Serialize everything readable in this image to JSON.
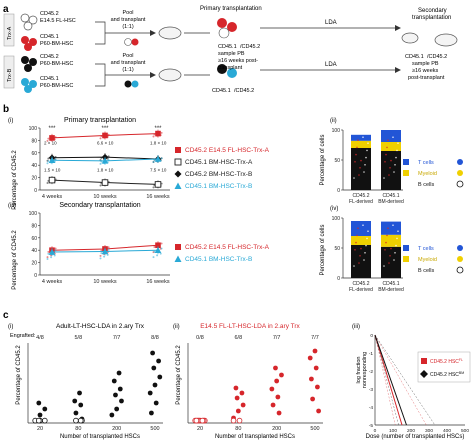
{
  "panel_labels": {
    "a": "a",
    "b": "b",
    "c": "c"
  },
  "panel_a": {
    "row_a": {
      "trx_label": "Trx-A",
      "donor1_l1": "CD45.2",
      "donor1_l2": "E14.5 FL-HSC",
      "donor2_l1": "CD45.1",
      "donor2_l2": "P60-BM-HSC",
      "pool_l1": "Pool",
      "pool_l2": "and transplant",
      "pool_l3": "(1:1)"
    },
    "row_b": {
      "trx_label": "Trx-B",
      "donor1_l1": "CD45.2",
      "donor1_l2": "P60-BM-HSC",
      "donor2_l1": "CD45.1",
      "donor2_l2": "P60-BM-HSC",
      "pool_l1": "Pool",
      "pool_l2": "and transplant",
      "pool_l3": "(1:1)"
    },
    "primary_title": "Primary transplantation",
    "sample_l1": "CD45.1",
    "sample_l2": "/CD45.2",
    "sample_l3": "sample PB",
    "sample_l4": "≥16 weeks post-",
    "sample_l5": "transplant",
    "lda1": "LDA",
    "lda2": "LDA",
    "mid_cells": "CD45.1",
    "mid_cells2": "/CD45.2",
    "secondary_title_l1": "Secondary",
    "secondary_title_l2": "transplantation",
    "sec_sample_l1": "CD45.1",
    "sec_sample_l2": "/CD45.2",
    "sec_sample_l3": "sample PB",
    "sec_sample_l4": "≥16 weeks",
    "sec_sample_l5": "post-transplant"
  },
  "panel_b": {
    "sub_i": "(i)",
    "sub_ii": "(ii)",
    "sub_iii": "(iii)",
    "sub_iv": "(iv)",
    "primary_title": "Primary transplantation",
    "secondary_title": "Secondary transplantation",
    "ylabel_line": "Percentage of CD45.2",
    "ylabel_bar": "Percentage of cells",
    "sig": [
      "***",
      "***",
      "***"
    ],
    "pvals": [
      "2 × 10",
      "6.6 × 10",
      "1.8 × 10"
    ],
    "pvals_bottom": [
      "1.5 × 10",
      "1.8 × 10",
      "7.5 × 10"
    ],
    "legend_i": [
      {
        "label": "CD45.2 E14.5 FL-HSC-Trx-A",
        "color": "#d6262b",
        "marker": "square"
      },
      {
        "label": "CD45.1 BM-HSC-Trx-A",
        "color": "#222222",
        "marker": "square-open"
      },
      {
        "label": "CD45.2 BM-HSC-Trx-B",
        "color": "#111111",
        "marker": "diamond"
      },
      {
        "label": "CD45.1 BM-HSC-Trx-B",
        "color": "#29a9d6",
        "marker": "triangle"
      }
    ],
    "legend_iii": [
      {
        "label": "CD45.2 E14.5 FL-HSC-Trx-A",
        "color": "#d6262b",
        "marker": "square"
      },
      {
        "label": "CD45.1 BM-HSC-Trx-B",
        "color": "#29a9d6",
        "marker": "triangle"
      }
    ],
    "bar_legend": [
      {
        "label": "T cells",
        "color": "#2255d6"
      },
      {
        "label": "Myeloid",
        "color": "#f0d000"
      },
      {
        "label": "B cells",
        "color": "#111111"
      }
    ],
    "bar_categories": [
      "CD45.2",
      "CD45.1"
    ],
    "bar_cat_sub": [
      "FL-derived",
      "BM-derived"
    ]
  },
  "panel_c": {
    "sub_i": "(i)",
    "sub_ii": "(ii)",
    "sub_iii": "(iii)",
    "title_i": "Adult-LT-HSC-LDA in 2.ary Trx",
    "title_ii": "E14.5 FL-LT-HSC-LDA in 2.ary Trx",
    "engrafted_label": "Engrafted:",
    "engrafted_i": [
      "4/8",
      "5/8",
      "7/7",
      "8/8"
    ],
    "engrafted_ii": [
      "0/8",
      "6/8",
      "7/7",
      "7/7"
    ],
    "xlabel": "Number of transplanted HSCs",
    "ylabel": "Percentage of CD45.2",
    "xlabel_iii": "Dose (number of transplanted HSCs)",
    "ylabel_iii_l1": "log fraction",
    "ylabel_iii_l2": "nonresponding",
    "legend_iii": [
      {
        "label": "CD45.2 HSC",
        "sup": "FL",
        "color": "#d6262b"
      },
      {
        "label": "CD45.2 HSC",
        "sup": "BM",
        "color": "#111111"
      }
    ]
  },
  "chart_data": [
    {
      "type": "line",
      "title": "Primary transplantation",
      "ylabel": "Percentage of CD45.2",
      "categories": [
        "4 weeks",
        "10 weeks",
        "16 weeks"
      ],
      "yticks": [
        0,
        20,
        40,
        60,
        80,
        100
      ],
      "ylim": [
        0,
        100
      ],
      "series": [
        {
          "name": "CD45.2 E14.5 FL-HSC-Trx-A",
          "values": [
            84,
            88,
            91
          ]
        },
        {
          "name": "CD45.1 BM-HSC-Trx-A",
          "values": [
            16,
            12,
            9
          ]
        },
        {
          "name": "CD45.2 BM-HSC-Trx-B",
          "values": [
            52,
            53,
            50
          ]
        },
        {
          "name": "CD45.1 BM-HSC-Trx-B",
          "values": [
            48,
            47,
            50
          ]
        }
      ]
    },
    {
      "type": "bar",
      "ylabel": "Percentage of cells",
      "categories": [
        "CD45.2 FL-derived",
        "CD45.1 BM-derived"
      ],
      "ylim": [
        0,
        100
      ],
      "series": [
        {
          "name": "B cells",
          "values": [
            70,
            65
          ]
        },
        {
          "name": "Myeloid",
          "values": [
            12,
            15
          ]
        },
        {
          "name": "T cells",
          "values": [
            10,
            20
          ]
        }
      ]
    },
    {
      "type": "line",
      "title": "Secondary transplantation",
      "ylabel": "Percentage of CD45.2",
      "categories": [
        "4 weeks",
        "10 weeks",
        "16 weeks"
      ],
      "yticks": [
        0,
        20,
        40,
        60,
        80,
        100
      ],
      "ylim": [
        0,
        100
      ],
      "series": [
        {
          "name": "CD45.2 E14.5 FL-HSC-Trx-A",
          "values": [
            40,
            42,
            48
          ]
        },
        {
          "name": "CD45.1 BM-HSC-Trx-B",
          "values": [
            37,
            38,
            40
          ]
        }
      ]
    },
    {
      "type": "bar",
      "ylabel": "Percentage of cells",
      "categories": [
        "CD45.2 FL-derived",
        "CD45.1 BM-derived"
      ],
      "ylim": [
        0,
        100
      ],
      "series": [
        {
          "name": "B cells",
          "values": [
            55,
            52
          ]
        },
        {
          "name": "Myeloid",
          "values": [
            15,
            20
          ]
        },
        {
          "name": "T cells",
          "values": [
            25,
            22
          ]
        }
      ]
    },
    {
      "type": "scatter",
      "title": "Adult-LT-HSC-LDA in 2.ary Trx",
      "xlabel": "Number of transplanted HSCs",
      "ylabel": "Percentage of CD45.2",
      "xticks": [
        20,
        80,
        200,
        500
      ],
      "series": [
        {
          "name": "engrafted",
          "points": [
            [
              20,
              2
            ],
            [
              20,
              8
            ],
            [
              20,
              14
            ],
            [
              20,
              20
            ],
            [
              80,
              4
            ],
            [
              80,
              10
            ],
            [
              80,
              18
            ],
            [
              80,
              22
            ],
            [
              80,
              30
            ],
            [
              200,
              8
            ],
            [
              200,
              14
            ],
            [
              200,
              22
            ],
            [
              200,
              28
            ],
            [
              200,
              34
            ],
            [
              200,
              42
            ],
            [
              200,
              50
            ],
            [
              500,
              10
            ],
            [
              500,
              20
            ],
            [
              500,
              30
            ],
            [
              500,
              38
            ],
            [
              500,
              46
            ],
            [
              500,
              55
            ],
            [
              500,
              62
            ],
            [
              500,
              70
            ]
          ]
        },
        {
          "name": "not engrafted",
          "points": [
            [
              20,
              0
            ],
            [
              20,
              0
            ],
            [
              20,
              0
            ],
            [
              20,
              0
            ],
            [
              80,
              0
            ],
            [
              80,
              0
            ],
            [
              80,
              0
            ]
          ]
        }
      ]
    },
    {
      "type": "scatter",
      "title": "E14.5 FL-LT-HSC-LDA in 2.ary Trx",
      "xlabel": "Number of transplanted HSCs",
      "ylabel": "Percentage of CD45.2",
      "xticks": [
        20,
        80,
        200,
        500
      ],
      "series": [
        {
          "name": "engrafted",
          "points": [
            [
              80,
              5
            ],
            [
              80,
              12
            ],
            [
              80,
              18
            ],
            [
              80,
              25
            ],
            [
              80,
              30
            ],
            [
              80,
              35
            ],
            [
              200,
              10
            ],
            [
              200,
              18
            ],
            [
              200,
              26
            ],
            [
              200,
              34
            ],
            [
              200,
              42
            ],
            [
              200,
              48
            ],
            [
              200,
              55
            ],
            [
              500,
              12
            ],
            [
              500,
              24
            ],
            [
              500,
              36
            ],
            [
              500,
              44
            ],
            [
              500,
              55
            ],
            [
              500,
              65
            ],
            [
              500,
              72
            ]
          ]
        },
        {
          "name": "not engrafted",
          "points": [
            [
              20,
              0
            ],
            [
              20,
              0
            ],
            [
              20,
              0
            ],
            [
              20,
              0
            ],
            [
              20,
              0
            ],
            [
              20,
              0
            ],
            [
              20,
              0
            ],
            [
              20,
              0
            ],
            [
              80,
              0
            ],
            [
              80,
              0
            ]
          ]
        }
      ]
    },
    {
      "type": "line",
      "xlabel": "Dose (number of transplanted HSCs)",
      "ylabel": "log fraction nonresponding",
      "xticks": [
        0,
        100,
        200,
        300,
        400,
        500
      ],
      "yticks": [
        0,
        -1,
        -2,
        -3,
        -4,
        -5
      ],
      "ylim": [
        -5,
        0
      ],
      "xlim": [
        0,
        500
      ],
      "series": [
        {
          "name": "CD45.2 HSC FL",
          "x": [
            0,
            150
          ],
          "y": [
            0,
            -5
          ]
        },
        {
          "name": "CD45.2 HSC BM",
          "x": [
            0,
            175
          ],
          "y": [
            0,
            -5
          ]
        }
      ]
    }
  ]
}
